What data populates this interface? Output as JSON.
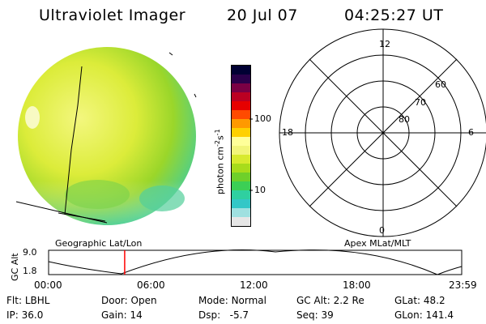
{
  "header": {
    "instrument": "Ultraviolet Imager",
    "date": "20 Jul 07",
    "time": "04:25:27 UT"
  },
  "colorbar": {
    "unit_label": "photon cm",
    "unit_exp1": "-2",
    "unit_s": "s",
    "unit_exp2": "-1",
    "ticks": [
      "100",
      "10"
    ],
    "colors": [
      "#000033",
      "#2a004a",
      "#7a0044",
      "#bb0022",
      "#e60000",
      "#ff4a00",
      "#ff9900",
      "#ffd000",
      "#ffff99",
      "#f2f57a",
      "#d8ea2e",
      "#a8dc1b",
      "#6fd02a",
      "#3ccf55",
      "#2fd0a0",
      "#33c7c7",
      "#9fe0e0",
      "#e6e6e6"
    ]
  },
  "polar": {
    "mlt_labels": {
      "top": "12",
      "right": "6",
      "bottom": "0",
      "left": "18"
    },
    "lat_labels": [
      "60",
      "70",
      "80"
    ]
  },
  "coord_labels": {
    "left": "Geographic Lat/Lon",
    "right": "Apex MLat/MLT"
  },
  "alt_plot": {
    "ylabel": "GC Alt",
    "y_ticks": [
      "9.0",
      "1.8"
    ],
    "x_ticks": [
      "00:00",
      "06:00",
      "12:00",
      "18:00",
      "23:59"
    ],
    "current_time_marker_hours": 4.42
  },
  "info": {
    "row1": [
      {
        "key": "Flt:",
        "val": "LBHL"
      },
      {
        "key": "Door:",
        "val": "Open"
      },
      {
        "key": "Mode:",
        "val": "Normal"
      },
      {
        "key": "GC Alt:",
        "val": "2.2 Re"
      },
      {
        "key": "GLat:",
        "val": "48.2"
      }
    ],
    "row2": [
      {
        "key": "IP:",
        "val": "36.0"
      },
      {
        "key": "Gain:",
        "val": "14"
      },
      {
        "key": "Dsp:",
        "val": "-5.7"
      },
      {
        "key": "Seq:",
        "val": "39"
      },
      {
        "key": "GLon:",
        "val": "141.4"
      }
    ]
  }
}
